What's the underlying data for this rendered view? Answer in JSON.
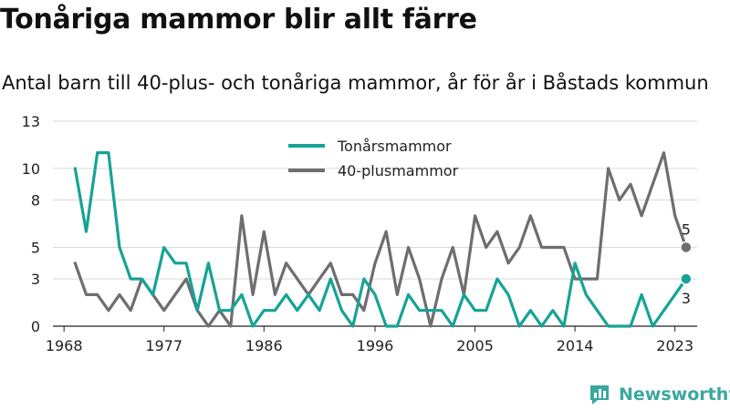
{
  "title": "Tonåriga mammor blir allt färre",
  "subtitle": "Antal barn till 40-plus- och tonåriga mammor, år för år i Båstads kommun",
  "brand": "Newsworthy",
  "colors": {
    "teen": "#16a396",
    "plus40": "#6d6d72",
    "grid": "#d9d9d9",
    "axis": "#222222",
    "brand": "#3aa7a0"
  },
  "chart_data": {
    "type": "line",
    "ylim": [
      0,
      13
    ],
    "y_ticks": [
      0,
      3,
      5,
      8,
      10,
      13
    ],
    "x_range": [
      1967,
      2025
    ],
    "x_ticks": [
      1968,
      1977,
      1986,
      1996,
      2005,
      2014,
      2023
    ],
    "legend_position": "top-center",
    "grid": "horizontal",
    "x": [
      1969,
      1970,
      1971,
      1972,
      1973,
      1974,
      1975,
      1976,
      1977,
      1978,
      1979,
      1980,
      1981,
      1982,
      1983,
      1984,
      1985,
      1986,
      1987,
      1988,
      1989,
      1990,
      1991,
      1992,
      1993,
      1994,
      1995,
      1996,
      1997,
      1998,
      1999,
      2000,
      2001,
      2002,
      2003,
      2004,
      2005,
      2006,
      2007,
      2008,
      2009,
      2010,
      2011,
      2012,
      2013,
      2014,
      2015,
      2016,
      2017,
      2018,
      2019,
      2020,
      2021,
      2022,
      2023,
      2024
    ],
    "series": [
      {
        "name": "Tonårsmammor",
        "values": [
          10,
          6,
          11,
          11,
          5,
          3,
          3,
          2,
          5,
          4,
          4,
          1,
          4,
          1,
          1,
          2,
          0,
          1,
          1,
          2,
          1,
          2,
          1,
          3,
          1,
          0,
          3,
          2,
          0,
          0,
          2,
          1,
          1,
          1,
          0,
          2,
          1,
          1,
          3,
          2,
          0,
          1,
          0,
          1,
          0,
          4,
          2,
          1,
          0,
          0,
          0,
          2,
          0,
          1,
          2,
          3
        ],
        "end_label": "3"
      },
      {
        "name": "40-plusmammor",
        "values": [
          4,
          2,
          2,
          1,
          2,
          1,
          3,
          2,
          1,
          2,
          3,
          1,
          0,
          1,
          0,
          7,
          2,
          6,
          2,
          4,
          3,
          2,
          3,
          4,
          2,
          2,
          1,
          4,
          6,
          2,
          5,
          3,
          0,
          3,
          5,
          2,
          7,
          5,
          6,
          4,
          5,
          7,
          5,
          5,
          5,
          3,
          3,
          3,
          10,
          8,
          9,
          7,
          9,
          11,
          7,
          5
        ],
        "end_label": "5"
      }
    ]
  }
}
